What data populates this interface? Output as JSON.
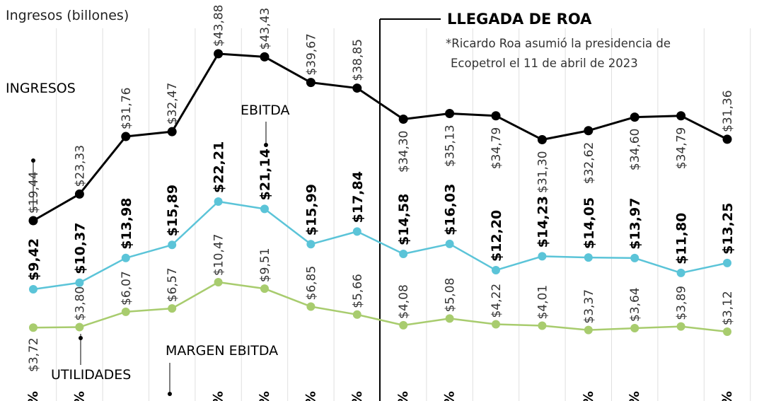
{
  "chart_data": {
    "type": "line",
    "ylabel": "Ingresos (billones)",
    "x": [
      "",
      "",
      "",
      "",
      "",
      "",
      "",
      "",
      "",
      "",
      "",
      "",
      "",
      "",
      "",
      ""
    ],
    "series": [
      {
        "name": "INGRESOS",
        "color": "#000000",
        "values": [
          19.44,
          23.33,
          31.76,
          32.47,
          43.88,
          43.43,
          39.67,
          38.85,
          34.3,
          35.13,
          34.79,
          31.3,
          32.62,
          34.6,
          34.79,
          31.36
        ],
        "labels": [
          "$19,44",
          "$23,33",
          "$31,76",
          "$32,47",
          "$43,88",
          "$43,43",
          "$39,67",
          "$38,85",
          "$34,30",
          "$35,13",
          "$34,79",
          "$31,30",
          "$32,62",
          "$34,60",
          "$34,79",
          "$31,36"
        ]
      },
      {
        "name": "EBITDA",
        "color": "#5bc4d8",
        "values": [
          9.42,
          10.37,
          13.98,
          15.89,
          22.21,
          21.14,
          15.99,
          17.84,
          14.58,
          16.03,
          12.2,
          14.23,
          14.05,
          13.97,
          11.8,
          13.25
        ],
        "labels": [
          "$9,42",
          "$10,37",
          "$13,98",
          "$15,89",
          "$22,21",
          "$21,14",
          "$15,99",
          "$17,84",
          "$14,58",
          "$16,03",
          "$12,20",
          "$14,23",
          "$14,05",
          "$13,97",
          "$11,80",
          "$13,25"
        ]
      },
      {
        "name": "UTILIDADES",
        "color": "#a8cc6e",
        "values": [
          3.72,
          3.8,
          6.07,
          6.57,
          10.47,
          9.51,
          6.85,
          5.66,
          4.08,
          5.08,
          4.22,
          4.01,
          3.37,
          3.64,
          3.89,
          3.12
        ],
        "labels": [
          "$3,72",
          "$3,80",
          "$6,07",
          "$6,57",
          "$10,47",
          "$9,51",
          "$6,85",
          "$5,66",
          "$4,08",
          "$5,08",
          "$4,22",
          "$4,01",
          "$3,37",
          "$3,64",
          "$3,89",
          "$3,12"
        ]
      }
    ],
    "margin_series_name": "MARGEN EBITDA",
    "margin_labels": [
      "%",
      "%",
      "",
      "",
      "%",
      "%",
      "%",
      "%",
      "%",
      "%",
      "",
      "",
      "%",
      "%",
      "",
      "%"
    ],
    "annotation": {
      "title": "LLEGADA DE ROA",
      "text_line1": "*Ricardo Roa asumió la presidencia de",
      "text_line2": "Ecopetrol el 11 de abril de 2023"
    }
  }
}
